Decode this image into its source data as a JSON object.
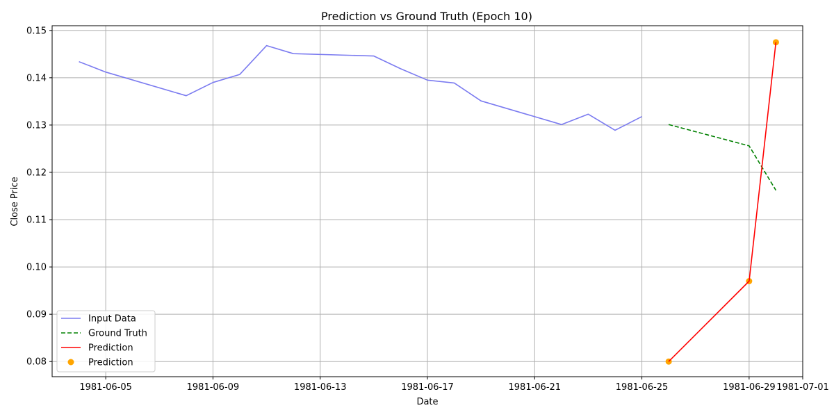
{
  "chart_data": {
    "type": "line",
    "title": "Prediction vs Ground Truth (Epoch 10)",
    "xlabel": "Date",
    "ylabel": "Close Price",
    "xlim": [
      "1981-06-03",
      "1981-07-01"
    ],
    "ylim": [
      0.0768,
      0.151
    ],
    "x_ticks": [
      "1981-06-05",
      "1981-06-09",
      "1981-06-13",
      "1981-06-17",
      "1981-06-21",
      "1981-06-25",
      "1981-06-29",
      "1981-07-01"
    ],
    "y_ticks": [
      0.08,
      0.09,
      0.1,
      0.11,
      0.12,
      0.13,
      0.14,
      0.15
    ],
    "y_tick_labels": [
      "0.08",
      "0.09",
      "0.10",
      "0.11",
      "0.12",
      "0.13",
      "0.14",
      "0.15"
    ],
    "grid": true,
    "legend_position": "lower-left",
    "series": [
      {
        "name": "Input Data",
        "kind": "line",
        "color": "#7b7bf0",
        "style": "solid",
        "x": [
          "1981-06-04",
          "1981-06-05",
          "1981-06-08",
          "1981-06-09",
          "1981-06-10",
          "1981-06-11",
          "1981-06-12",
          "1981-06-15",
          "1981-06-16",
          "1981-06-17",
          "1981-06-18",
          "1981-06-19",
          "1981-06-22",
          "1981-06-23",
          "1981-06-24",
          "1981-06-25"
        ],
        "y": [
          0.1434,
          0.1412,
          0.1362,
          0.139,
          0.1407,
          0.1468,
          0.1451,
          0.1446,
          0.1419,
          0.1395,
          0.1389,
          0.1351,
          0.1301,
          0.1323,
          0.1289,
          0.1318
        ]
      },
      {
        "name": "Ground Truth",
        "kind": "line",
        "color": "#008000",
        "style": "dashed",
        "x": [
          "1981-06-26",
          "1981-06-29",
          "1981-06-30"
        ],
        "y": [
          0.1301,
          0.1256,
          0.1162
        ]
      },
      {
        "name": "Prediction",
        "kind": "line",
        "color": "#ff0000",
        "style": "solid",
        "x": [
          "1981-06-26",
          "1981-06-29",
          "1981-06-30"
        ],
        "y": [
          0.08,
          0.097,
          0.1475
        ]
      },
      {
        "name": "Prediction",
        "kind": "scatter",
        "color": "#ffa500",
        "x": [
          "1981-06-26",
          "1981-06-29",
          "1981-06-30"
        ],
        "y": [
          0.08,
          0.097,
          0.1475
        ]
      }
    ]
  }
}
